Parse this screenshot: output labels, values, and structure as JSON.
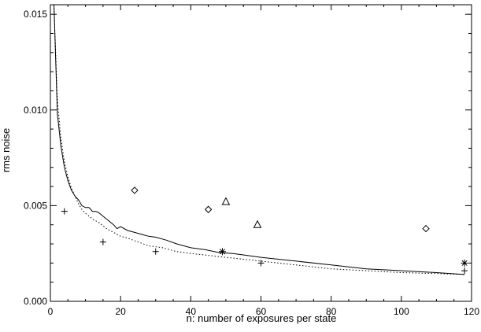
{
  "chart_data": {
    "type": "scatter",
    "title": "",
    "xlabel": "n: number of exposures per state",
    "ylabel": "rms noise",
    "xlim": [
      0,
      120
    ],
    "ylim": [
      0,
      0.0155
    ],
    "x_ticks": [
      0,
      20,
      40,
      60,
      80,
      100,
      120
    ],
    "x_tick_labels": [
      "0",
      "20",
      "40",
      "60",
      "80",
      "100",
      "120"
    ],
    "y_ticks": [
      0.0,
      0.005,
      0.01,
      0.015
    ],
    "y_tick_labels": [
      "0.000",
      "0.005",
      "0.010",
      "0.015"
    ],
    "grid": false,
    "legend": "none",
    "series": [
      {
        "style": "solid-line",
        "x": [
          1,
          2,
          3,
          4,
          5,
          6,
          7,
          8,
          9,
          10,
          11,
          12,
          13,
          14,
          16,
          18,
          19,
          20,
          22,
          24,
          26,
          28,
          30,
          33,
          36,
          40,
          44,
          48,
          52,
          56,
          60,
          65,
          70,
          80,
          90,
          100,
          110,
          118
        ],
        "y": [
          0.0155,
          0.0098,
          0.0081,
          0.007,
          0.0063,
          0.0058,
          0.0055,
          0.0053,
          0.005,
          0.0049,
          0.0049,
          0.0047,
          0.0047,
          0.0046,
          0.0043,
          0.004,
          0.0038,
          0.0039,
          0.0037,
          0.0036,
          0.0035,
          0.0034,
          0.00335,
          0.0032,
          0.003,
          0.0028,
          0.0027,
          0.00255,
          0.0025,
          0.0024,
          0.0023,
          0.0022,
          0.0021,
          0.0019,
          0.0017,
          0.0016,
          0.0015,
          0.0014
        ]
      },
      {
        "style": "dotted-line",
        "x": [
          1,
          2,
          3,
          4,
          5,
          6,
          7,
          8,
          9,
          10,
          12,
          14,
          16,
          18,
          20,
          22,
          25,
          28,
          32,
          36,
          40,
          45,
          50,
          55,
          60,
          70,
          80,
          90,
          100,
          110,
          118
        ],
        "y": [
          0.0155,
          0.0105,
          0.0085,
          0.0073,
          0.0065,
          0.0059,
          0.0055,
          0.0051,
          0.0048,
          0.0046,
          0.0043,
          0.0041,
          0.0038,
          0.0036,
          0.0034,
          0.0033,
          0.0031,
          0.0029,
          0.0028,
          0.0026,
          0.0025,
          0.0024,
          0.0023,
          0.0022,
          0.0021,
          0.0019,
          0.0017,
          0.0016,
          0.0015,
          0.00145,
          0.0014
        ]
      },
      {
        "style": "plus",
        "x": [
          4,
          15,
          30,
          60,
          118
        ],
        "y": [
          0.0047,
          0.0031,
          0.0026,
          0.002,
          0.0016
        ]
      },
      {
        "style": "diamond",
        "x": [
          24,
          45,
          107
        ],
        "y": [
          0.0058,
          0.0048,
          0.0038
        ]
      },
      {
        "style": "triangle",
        "x": [
          50,
          59
        ],
        "y": [
          0.0052,
          0.004
        ]
      },
      {
        "style": "asterisk",
        "x": [
          49,
          118
        ],
        "y": [
          0.0026,
          0.002
        ]
      }
    ]
  }
}
